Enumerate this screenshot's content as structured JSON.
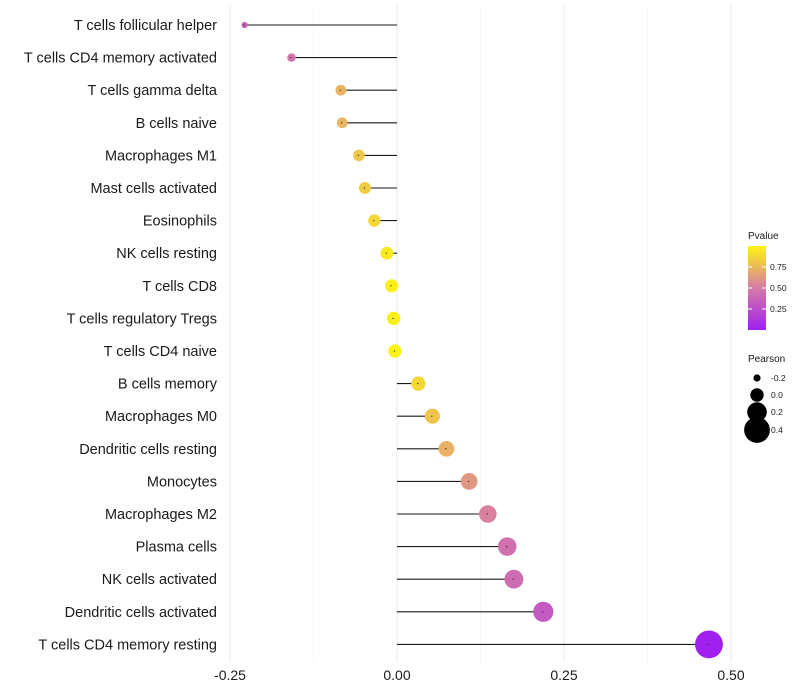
{
  "chart_data": {
    "type": "lollipop",
    "title": "",
    "xlabel": "",
    "ylabel": "",
    "xlim": [
      -0.25,
      0.5
    ],
    "xticks": [
      -0.25,
      0.0,
      0.25,
      0.5
    ],
    "xtick_labels": [
      "-0.25",
      "0.00",
      "0.25",
      "0.50"
    ],
    "grid": "vertical",
    "categories": [
      "T cells follicular helper",
      "T cells CD4 memory activated",
      "T cells gamma delta",
      "B cells naive",
      "Macrophages M1",
      "Mast cells activated",
      "Eosinophils",
      "NK cells resting",
      "T cells CD8",
      "T cells regulatory  Tregs ",
      "T cells CD4 naive",
      "B cells memory",
      "Macrophages M0",
      "Dendritic cells resting",
      "Monocytes",
      "Macrophages M2",
      "Plasma cells",
      "NK cells activated",
      "Dendritic cells activated",
      "T cells CD4 memory resting"
    ],
    "pearson": [
      -0.228,
      -0.158,
      -0.084,
      -0.082,
      -0.057,
      -0.048,
      -0.034,
      -0.015,
      -0.008,
      -0.005,
      -0.003,
      0.032,
      0.053,
      0.074,
      0.108,
      0.136,
      0.165,
      0.175,
      0.219,
      0.467
    ],
    "pvalue": [
      0.36,
      0.46,
      0.73,
      0.74,
      0.81,
      0.83,
      0.88,
      0.95,
      0.97,
      0.98,
      0.99,
      0.88,
      0.8,
      0.72,
      0.62,
      0.52,
      0.44,
      0.42,
      0.32,
      0.004
    ],
    "legend_position": "right",
    "color_legend": {
      "title": "Pvalue",
      "ticks": [
        0.75,
        0.5,
        0.25
      ],
      "tick_labels": [
        "0.75",
        "0.50",
        "0.25"
      ],
      "range": [
        0.0,
        1.0
      ],
      "low_color": "#a020f0",
      "mid_color": "#d77ba6",
      "high_color": "#fdf512"
    },
    "size_legend": {
      "title": "Pearson",
      "values": [
        -0.2,
        0.0,
        0.2,
        0.4
      ],
      "labels": [
        "-0.2",
        "0.0",
        "0.2",
        "0.4"
      ],
      "color": "#000000"
    }
  }
}
